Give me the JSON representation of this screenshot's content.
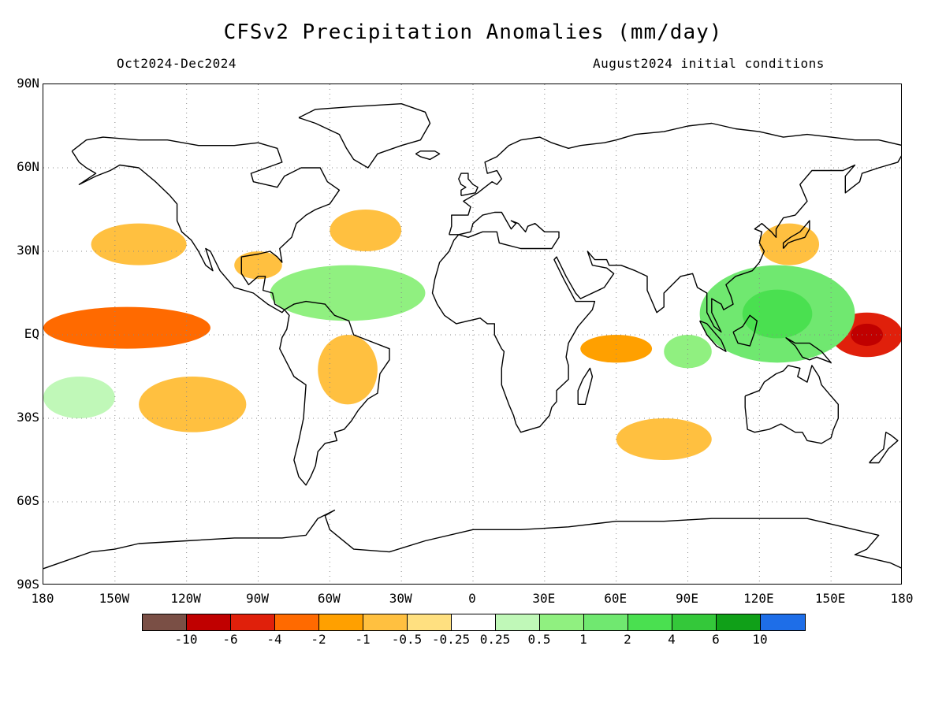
{
  "title": "CFSv2 Precipitation Anomalies (mm/day)",
  "subtitle_left": "Oct2024-Dec2024",
  "subtitle_right": "August2024 initial conditions",
  "lat_labels": [
    "90N",
    "60N",
    "30N",
    "EQ",
    "30S",
    "60S",
    "90S"
  ],
  "lon_labels": [
    "180",
    "150W",
    "120W",
    "90W",
    "60W",
    "30W",
    "0",
    "30E",
    "60E",
    "90E",
    "120E",
    "150E",
    "180"
  ],
  "colorbar": {
    "colors": [
      "#7a4f45",
      "#c00000",
      "#e0200b",
      "#ff6a00",
      "#ffa000",
      "#ffc040",
      "#ffe080",
      "#ffffff",
      "#c0f8b8",
      "#90f080",
      "#70e870",
      "#4ae050",
      "#34c83a",
      "#10a018",
      "#1e6ee8"
    ],
    "labels": [
      "-10",
      "-6",
      "-4",
      "-2",
      "-1",
      "-0.5",
      "-0.25",
      "0.25",
      "0.5",
      "1",
      "2",
      "4",
      "6",
      "10"
    ]
  },
  "chart_data": {
    "type": "heatmap",
    "variable": "Precipitation Anomalies",
    "units": "mm/day",
    "period": "Oct2024-Dec2024",
    "initial_conditions": "August2024",
    "lon_range": [
      -180,
      180
    ],
    "lat_range": [
      -90,
      90
    ],
    "contour_levels": [
      -10,
      -6,
      -4,
      -2,
      -1,
      -0.5,
      -0.25,
      0.25,
      0.5,
      1,
      2,
      4,
      6,
      10
    ],
    "grid": true,
    "anomaly_regions": [
      {
        "region": "Central equatorial Pacific (near dateline)",
        "lon": [
          150,
          180
        ],
        "lat": [
          -8,
          8
        ],
        "value": -4
      },
      {
        "region": "Equatorial Pacific tongue",
        "lon": [
          -180,
          -110
        ],
        "lat": [
          -5,
          10
        ],
        "value": -2
      },
      {
        "region": "Western Pacific / Maritime Continent",
        "lon": [
          95,
          160
        ],
        "lat": [
          -10,
          25
        ],
        "value": 2
      },
      {
        "region": "Western equatorial Indian Ocean",
        "lon": [
          45,
          75
        ],
        "lat": [
          -10,
          0
        ],
        "value": -1
      },
      {
        "region": "Eastern Indian Ocean",
        "lon": [
          80,
          100
        ],
        "lat": [
          -12,
          0
        ],
        "value": 1
      },
      {
        "region": "Caribbean / tropical Atlantic",
        "lon": [
          -85,
          -20
        ],
        "lat": [
          5,
          25
        ],
        "value": 1
      },
      {
        "region": "Southeast Pacific",
        "lon": [
          -140,
          -95
        ],
        "lat": [
          -35,
          -15
        ],
        "value": -0.5
      },
      {
        "region": "Central South America",
        "lon": [
          -65,
          -40
        ],
        "lat": [
          -25,
          0
        ],
        "value": -0.5
      },
      {
        "region": "Central North Atlantic",
        "lon": [
          -60,
          -30
        ],
        "lat": [
          30,
          45
        ],
        "value": -0.5
      },
      {
        "region": "Gulf of Mexico",
        "lon": [
          -100,
          -80
        ],
        "lat": [
          20,
          30
        ],
        "value": -0.5
      },
      {
        "region": "Northwest Pacific (Japan)",
        "lon": [
          120,
          145
        ],
        "lat": [
          25,
          40
        ],
        "value": -0.5
      },
      {
        "region": "North Pacific subtropics",
        "lon": [
          -160,
          -120
        ],
        "lat": [
          25,
          40
        ],
        "value": -0.5
      },
      {
        "region": "Southern Indian Ocean",
        "lon": [
          60,
          100
        ],
        "lat": [
          -45,
          -30
        ],
        "value": -0.5
      },
      {
        "region": "South Pacific near date line",
        "lon": [
          -180,
          -150
        ],
        "lat": [
          -30,
          -15
        ],
        "value": 0.5
      }
    ]
  }
}
